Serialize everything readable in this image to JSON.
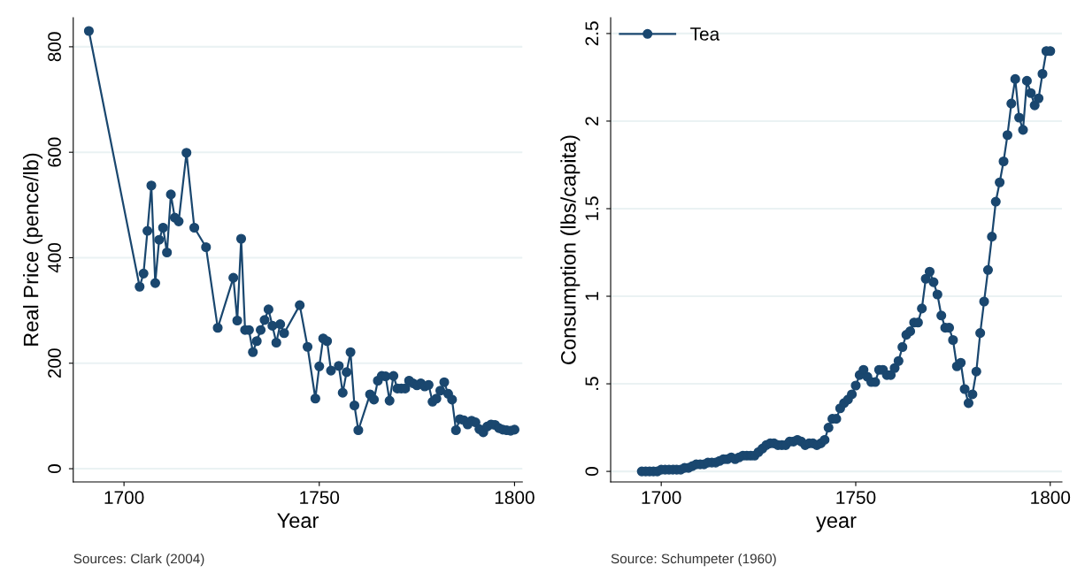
{
  "chart_data": [
    {
      "type": "line",
      "xlabel": "Year",
      "ylabel": "Real Price (pence/lb)",
      "annotations": [
        "Sources: Clark (2004)"
      ],
      "x": [
        1691,
        1704,
        1705,
        1706,
        1707,
        1708,
        1709,
        1710,
        1711,
        1712,
        1713,
        1714,
        1716,
        1718,
        1721,
        1724,
        1728,
        1729,
        1730,
        1731,
        1732,
        1733,
        1734,
        1735,
        1736,
        1737,
        1738,
        1739,
        1740,
        1741,
        1745,
        1747,
        1749,
        1750,
        1751,
        1752,
        1753,
        1755,
        1756,
        1757,
        1758,
        1759,
        1760,
        1763,
        1764,
        1765,
        1766,
        1767,
        1768,
        1769,
        1770,
        1771,
        1772,
        1773,
        1774,
        1775,
        1776,
        1777,
        1778,
        1779,
        1780,
        1781,
        1782,
        1783,
        1784,
        1785,
        1786,
        1787,
        1788,
        1789,
        1790,
        1791,
        1792,
        1793,
        1794,
        1795,
        1796,
        1797,
        1798,
        1799,
        1800
      ],
      "series": [
        {
          "color": "#1a476f",
          "values": [
            830,
            345,
            370,
            451,
            537,
            352,
            434,
            457,
            410,
            520,
            476,
            469,
            599,
            457,
            420,
            267,
            362,
            281,
            436,
            263,
            263,
            221,
            242,
            263,
            282,
            302,
            271,
            239,
            274,
            257,
            310,
            231,
            133,
            194,
            247,
            242,
            186,
            195,
            144,
            183,
            221,
            120,
            73,
            141,
            131,
            167,
            176,
            175,
            129,
            176,
            152,
            152,
            152,
            167,
            162,
            158,
            162,
            156,
            159,
            127,
            133,
            148,
            164,
            142,
            131,
            73,
            94,
            92,
            84,
            91,
            88,
            75,
            69,
            80,
            84,
            83,
            77,
            74,
            73,
            72,
            74
          ]
        }
      ],
      "xlim": [
        1687,
        1802
      ],
      "ylim": [
        -25,
        855
      ],
      "xticks": [
        1700,
        1750,
        1800
      ],
      "yticks": [
        0,
        200,
        400,
        600,
        800
      ],
      "grid": "y",
      "marker": "circle",
      "line_style": "solid",
      "legend": false
    },
    {
      "type": "line",
      "xlabel": "year",
      "ylabel": "Consumption (lbs/capita)",
      "annotations": [
        "Source: Schumpeter (1960)"
      ],
      "x": [
        1695,
        1696,
        1697,
        1698,
        1699,
        1700,
        1701,
        1702,
        1703,
        1704,
        1705,
        1706,
        1707,
        1708,
        1709,
        1710,
        1711,
        1712,
        1713,
        1714,
        1715,
        1716,
        1717,
        1718,
        1719,
        1720,
        1721,
        1722,
        1723,
        1724,
        1725,
        1726,
        1727,
        1728,
        1729,
        1730,
        1731,
        1732,
        1733,
        1734,
        1735,
        1736,
        1737,
        1738,
        1739,
        1740,
        1741,
        1742,
        1743,
        1744,
        1745,
        1746,
        1747,
        1748,
        1749,
        1750,
        1751,
        1752,
        1753,
        1754,
        1755,
        1756,
        1757,
        1758,
        1759,
        1760,
        1761,
        1762,
        1763,
        1764,
        1765,
        1766,
        1767,
        1768,
        1769,
        1770,
        1771,
        1772,
        1773,
        1774,
        1775,
        1776,
        1777,
        1778,
        1779,
        1780,
        1781,
        1782,
        1783,
        1784,
        1785,
        1786,
        1787,
        1788,
        1789,
        1790,
        1791,
        1792,
        1793,
        1794,
        1795,
        1796,
        1797,
        1798,
        1799,
        1800
      ],
      "series": [
        {
          "name": "Tea",
          "color": "#1a476f",
          "values": [
            0.0,
            0.0,
            0.0,
            0.0,
            0.0,
            0.01,
            0.01,
            0.01,
            0.01,
            0.01,
            0.01,
            0.02,
            0.02,
            0.03,
            0.04,
            0.04,
            0.04,
            0.05,
            0.05,
            0.05,
            0.06,
            0.07,
            0.07,
            0.08,
            0.07,
            0.08,
            0.09,
            0.09,
            0.09,
            0.09,
            0.11,
            0.13,
            0.15,
            0.16,
            0.16,
            0.15,
            0.15,
            0.15,
            0.17,
            0.17,
            0.18,
            0.17,
            0.15,
            0.16,
            0.16,
            0.15,
            0.16,
            0.18,
            0.25,
            0.3,
            0.3,
            0.36,
            0.39,
            0.41,
            0.44,
            0.49,
            0.55,
            0.58,
            0.54,
            0.51,
            0.51,
            0.58,
            0.58,
            0.55,
            0.55,
            0.59,
            0.63,
            0.71,
            0.78,
            0.8,
            0.85,
            0.85,
            0.93,
            1.1,
            1.14,
            1.08,
            1.01,
            0.89,
            0.82,
            0.82,
            0.75,
            0.6,
            0.62,
            0.47,
            0.39,
            0.44,
            0.57,
            0.79,
            0.97,
            1.15,
            1.34,
            1.54,
            1.65,
            1.77,
            1.92,
            2.1,
            2.24,
            2.02,
            1.95,
            2.23,
            2.16,
            2.09,
            2.13,
            2.27,
            2.4,
            2.4
          ]
        }
      ],
      "xlim": [
        1687,
        1803
      ],
      "ylim": [
        -0.06,
        2.59
      ],
      "xticks": [
        1700,
        1750,
        1800
      ],
      "yticks": [
        0,
        {
          "value": 0.5,
          "label": ".5"
        },
        1,
        1.5,
        2,
        2.5
      ],
      "grid": "y",
      "marker": "circle",
      "line_style": "solid",
      "legend": "top left"
    }
  ]
}
